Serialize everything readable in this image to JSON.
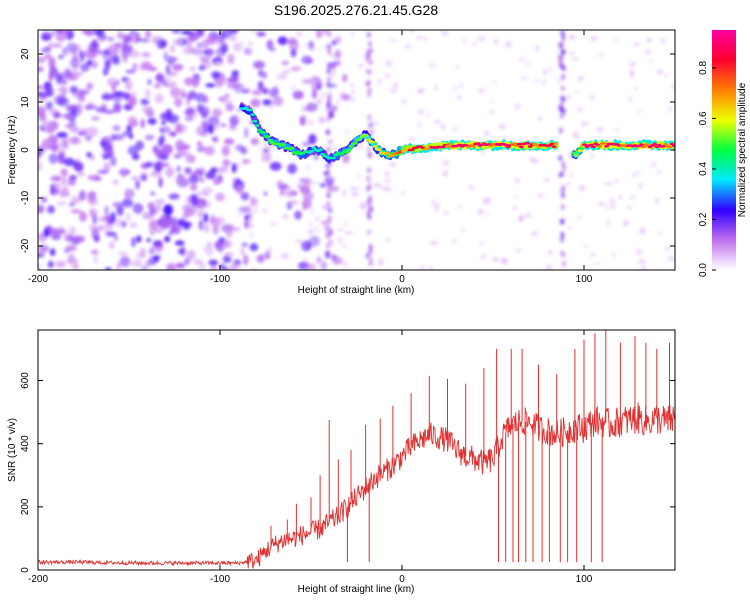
{
  "figure": {
    "title": "S196.2025.276.21.45.G28"
  },
  "chart_data": [
    {
      "type": "heatmap",
      "title": "S196.2025.276.21.45.G28",
      "xlabel": "Height of straight line (km)",
      "ylabel": "Frequency (Hz)",
      "xlim": [
        -200,
        150
      ],
      "ylim": [
        -25,
        25
      ],
      "x_ticks": [
        "-200",
        "-100",
        "0",
        "100"
      ],
      "y_ticks": [
        "-20",
        "-10",
        "0",
        "10",
        "20"
      ],
      "colorbar": {
        "label": "Normalized spectral amplitude",
        "range": [
          0,
          0.95
        ],
        "ticks": [
          "0.0",
          "0.2",
          "0.4",
          "0.6",
          "0.8"
        ],
        "colors": [
          "#ffffff",
          "#c070f0",
          "#3000ff",
          "#00e8ff",
          "#00ff40",
          "#f0ff00",
          "#ff8000",
          "#ff0030",
          "#ff00a0"
        ]
      },
      "trace": {
        "x": [
          -88,
          -83,
          -78,
          -72,
          -66,
          -60,
          -55,
          -50,
          -45,
          -40,
          -35,
          -30,
          -25,
          -20,
          -17,
          -13,
          -8,
          -4,
          0,
          10,
          30,
          60,
          85,
          90,
          95,
          100,
          120,
          150
        ],
        "y": [
          9,
          8,
          4,
          2,
          1,
          0,
          -1,
          0,
          0,
          -2,
          -1,
          0,
          2,
          3,
          2,
          0,
          -1,
          -1,
          0,
          0.5,
          1,
          1,
          1,
          0,
          -1,
          1,
          1,
          1
        ],
        "amplitude": [
          0.35,
          0.4,
          0.45,
          0.5,
          0.5,
          0.5,
          0.45,
          0.4,
          0.4,
          0.4,
          0.45,
          0.5,
          0.5,
          0.55,
          0.6,
          0.6,
          0.65,
          0.7,
          0.8,
          0.85,
          0.9,
          0.9,
          0.85,
          0.5,
          0.5,
          0.9,
          0.9,
          0.9
        ]
      },
      "noise_region_km": [
        -200,
        -70
      ]
    },
    {
      "type": "line",
      "xlabel": "Height of straight line (km)",
      "ylabel": "SNR (10 * v/v)",
      "xlim": [
        -200,
        150
      ],
      "ylim": [
        0,
        760
      ],
      "x_ticks": [
        "-200",
        "-100",
        "0",
        "100"
      ],
      "y_ticks": [
        "0",
        "200",
        "400",
        "600"
      ],
      "series": [
        {
          "name": "SNR",
          "color": "#e03030",
          "x": [
            -200,
            -180,
            -160,
            -140,
            -120,
            -100,
            -90,
            -80,
            -75,
            -70,
            -65,
            -60,
            -55,
            -50,
            -45,
            -40,
            -35,
            -30,
            -25,
            -20,
            -15,
            -10,
            -5,
            0,
            5,
            10,
            15,
            20,
            25,
            30,
            35,
            40,
            45,
            50,
            55,
            60,
            65,
            70,
            75,
            80,
            85,
            90,
            95,
            100,
            105,
            110,
            115,
            120,
            125,
            130,
            135,
            140,
            145,
            150
          ],
          "y": [
            25,
            25,
            23,
            22,
            22,
            22,
            22,
            30,
            60,
            80,
            95,
            100,
            110,
            120,
            130,
            150,
            170,
            200,
            230,
            260,
            290,
            310,
            330,
            360,
            390,
            410,
            430,
            420,
            410,
            380,
            360,
            350,
            340,
            350,
            420,
            460,
            470,
            470,
            450,
            440,
            430,
            440,
            450,
            450,
            470,
            470,
            460,
            470,
            475,
            480,
            470,
            480,
            470,
            480
          ],
          "spikes": [
            {
              "x": -72,
              "y": 140
            },
            {
              "x": -63,
              "y": 160
            },
            {
              "x": -58,
              "y": 210
            },
            {
              "x": -50,
              "y": 230
            },
            {
              "x": -45,
              "y": 300
            },
            {
              "x": -40,
              "y": 475
            },
            {
              "x": -35,
              "y": 350
            },
            {
              "x": -28,
              "y": 380
            },
            {
              "x": -20,
              "y": 460
            },
            {
              "x": -12,
              "y": 480
            },
            {
              "x": -5,
              "y": 520
            },
            {
              "x": 5,
              "y": 560
            },
            {
              "x": 15,
              "y": 615
            },
            {
              "x": 25,
              "y": 605
            },
            {
              "x": 35,
              "y": 590
            },
            {
              "x": 45,
              "y": 640
            },
            {
              "x": 52,
              "y": 700
            },
            {
              "x": 60,
              "y": 700
            },
            {
              "x": 66,
              "y": 700
            },
            {
              "x": 75,
              "y": 650
            },
            {
              "x": 85,
              "y": 620
            },
            {
              "x": 95,
              "y": 700
            },
            {
              "x": 100,
              "y": 730
            },
            {
              "x": 106,
              "y": 750
            },
            {
              "x": 112,
              "y": 760
            },
            {
              "x": 120,
              "y": 720
            },
            {
              "x": 128,
              "y": 740
            },
            {
              "x": 134,
              "y": 720
            },
            {
              "x": 140,
              "y": 700
            },
            {
              "x": 147,
              "y": 720
            }
          ],
          "dropouts": [
            {
              "x": 53,
              "y": 25
            },
            {
              "x": 57,
              "y": 25
            },
            {
              "x": 61,
              "y": 25
            },
            {
              "x": 64,
              "y": 25
            },
            {
              "x": 68,
              "y": 25
            },
            {
              "x": 72,
              "y": 25
            },
            {
              "x": 77,
              "y": 25
            },
            {
              "x": 81,
              "y": 25
            },
            {
              "x": 87,
              "y": 25
            },
            {
              "x": 91,
              "y": 25
            },
            {
              "x": 96,
              "y": 25
            },
            {
              "x": 104,
              "y": 25
            },
            {
              "x": 110,
              "y": 25
            },
            {
              "x": -30,
              "y": 25
            },
            {
              "x": -18,
              "y": 25
            }
          ]
        }
      ]
    }
  ]
}
